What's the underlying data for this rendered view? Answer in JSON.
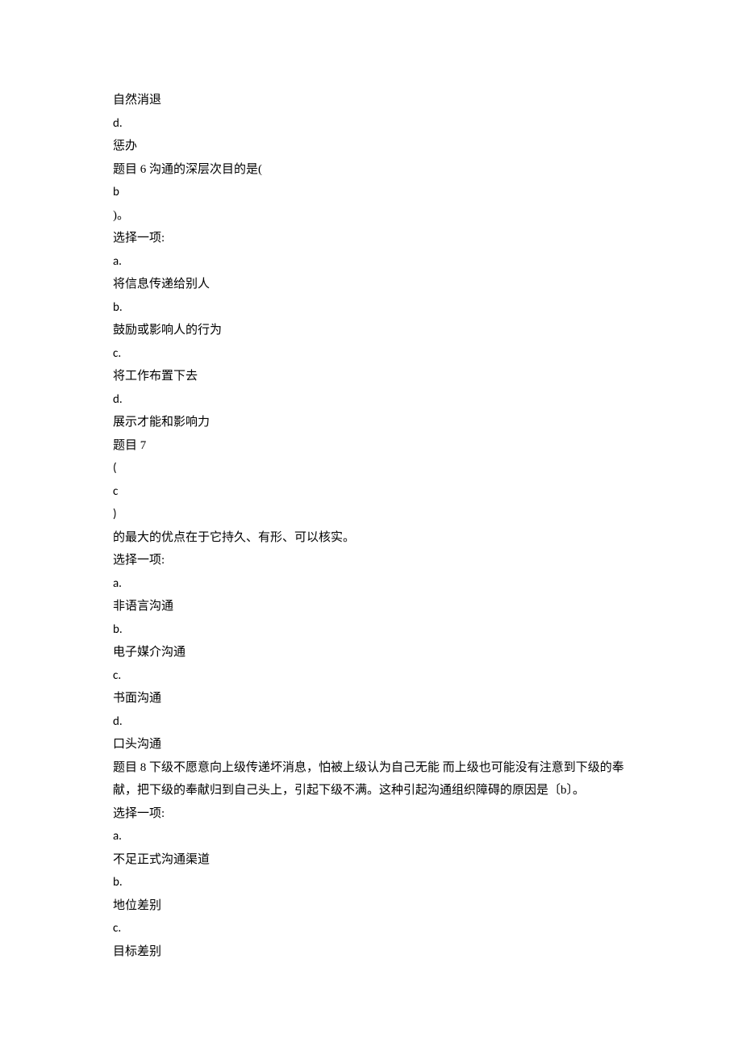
{
  "lines": [
    {
      "text": "自然消退",
      "latin": false
    },
    {
      "text": "d.",
      "latin": true
    },
    {
      "text": "惩办",
      "latin": false
    },
    {
      "text": "题目 6 沟通的深层次目的是(",
      "latin": false
    },
    {
      "text": "b",
      "latin": true
    },
    {
      "text": ")。",
      "latin": false
    },
    {
      "text": "选择一项:",
      "latin": false
    },
    {
      "text": "a.",
      "latin": true
    },
    {
      "text": "将信息传递给别人",
      "latin": false
    },
    {
      "text": "b.",
      "latin": true
    },
    {
      "text": "鼓励或影响人的行为",
      "latin": false
    },
    {
      "text": "c.",
      "latin": true
    },
    {
      "text": "将工作布置下去",
      "latin": false
    },
    {
      "text": "d.",
      "latin": true
    },
    {
      "text": "展示才能和影响力",
      "latin": false
    },
    {
      "text": "题目 7",
      "latin": false
    },
    {
      "text": "(",
      "latin": true
    },
    {
      "text": "c",
      "latin": true
    },
    {
      "text": ")",
      "latin": true
    },
    {
      "text": "的最大的优点在于它持久、有形、可以核实。",
      "latin": false
    },
    {
      "text": "选择一项:",
      "latin": false
    },
    {
      "text": "a.",
      "latin": true
    },
    {
      "text": "非语言沟通",
      "latin": false
    },
    {
      "text": "b.",
      "latin": true
    },
    {
      "text": "电子媒介沟通",
      "latin": false
    },
    {
      "text": "c.",
      "latin": true
    },
    {
      "text": "书面沟通",
      "latin": false
    },
    {
      "text": "d.",
      "latin": true
    },
    {
      "text": "口头沟通",
      "latin": false
    },
    {
      "text": "题目 8 下级不愿意向上级传递坏消息，怕被上级认为自己无能 而上级也可能没有注意到下级的奉献，把下级的奉献归到自己头上，引起下级不满。这种引起沟通组织障碍的原因是〔b〕。",
      "latin": false
    },
    {
      "text": "选择一项:",
      "latin": false
    },
    {
      "text": "a.",
      "latin": true
    },
    {
      "text": "不足正式沟通渠道",
      "latin": false
    },
    {
      "text": "b.",
      "latin": true
    },
    {
      "text": "地位差别",
      "latin": false
    },
    {
      "text": "c.",
      "latin": true
    },
    {
      "text": "目标差别",
      "latin": false
    }
  ]
}
